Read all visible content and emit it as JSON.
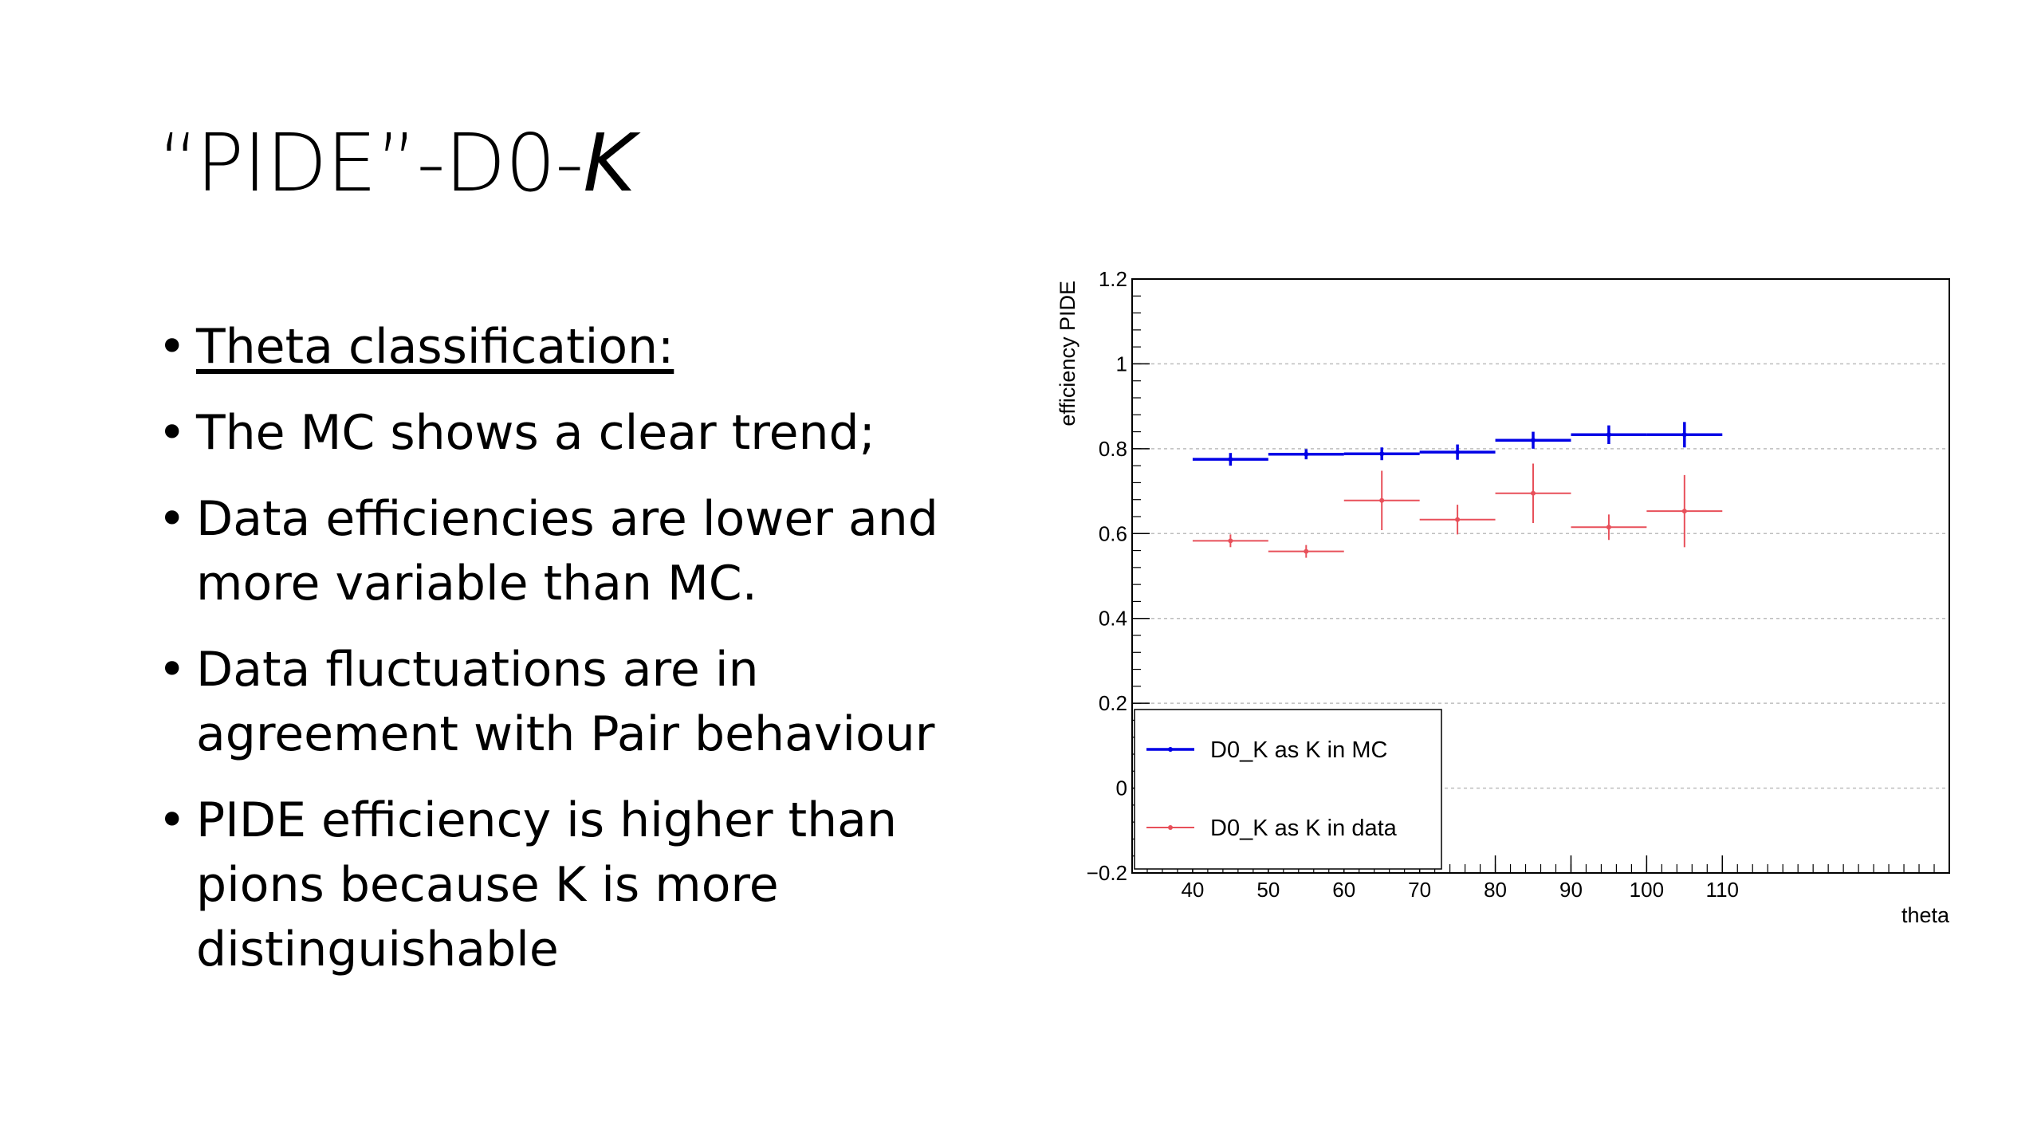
{
  "slide": {
    "title_part1": "“PIDE”-",
    "title_part2": "D0-",
    "title_part3": "K",
    "bullets": [
      "Theta classification:",
      "The MC shows a clear trend;",
      "Data efficiencies are lower and more variable than MC.",
      "Data fluctuations are in agreement with Pair behaviour",
      "PIDE efficiency is higher than pions because K is more distinguishable"
    ]
  },
  "chart_data": {
    "type": "scatter",
    "xlabel": "theta",
    "ylabel": "efficiency PIDE",
    "xlim": [
      32,
      140
    ],
    "ylim": [
      -0.2,
      1.2
    ],
    "xticks": [
      40,
      50,
      60,
      70,
      80,
      90,
      100,
      110
    ],
    "yticks": [
      -0.2,
      0,
      0.2,
      0.4,
      0.6,
      0.8,
      1,
      1.2
    ],
    "ytick_labels": [
      "−0.2",
      "0",
      "0.2",
      "0.4",
      "0.6",
      "0.8",
      "1",
      "1.2"
    ],
    "grid": true,
    "legend_placement": "bottom-left",
    "series": [
      {
        "name": "D0_K as K in MC",
        "color": "#0000e6",
        "x": [
          45,
          55,
          65,
          75,
          85,
          95,
          105
        ],
        "x_err": [
          5,
          5,
          5,
          5,
          5,
          5,
          5
        ],
        "y": [
          0.775,
          0.787,
          0.788,
          0.792,
          0.82,
          0.833,
          0.833
        ],
        "y_err": [
          0.015,
          0.012,
          0.015,
          0.018,
          0.02,
          0.022,
          0.03
        ]
      },
      {
        "name": "D0_K as K in data",
        "color": "#e8505a",
        "x": [
          45,
          55,
          65,
          75,
          85,
          95,
          105
        ],
        "x_err": [
          5,
          5,
          5,
          5,
          5,
          5,
          5
        ],
        "y": [
          0.583,
          0.558,
          0.678,
          0.633,
          0.695,
          0.615,
          0.653
        ],
        "y_err": [
          0.015,
          0.015,
          0.07,
          0.035,
          0.07,
          0.03,
          0.085
        ]
      }
    ]
  }
}
